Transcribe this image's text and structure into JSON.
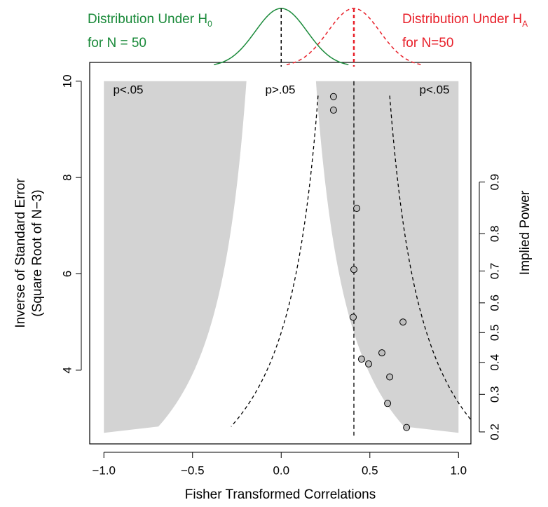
{
  "chart_data": {
    "type": "scatter",
    "x_label": "Fisher Transformed Correlations",
    "y_label": [
      "Inverse of Standard Error",
      "(Square Root of N−3)"
    ],
    "y2_label": "Implied Power",
    "region_labels": [
      "p<.05",
      "p>.05",
      "p<.05"
    ],
    "xlim": [
      -1.08,
      1.07
    ],
    "ylim": [
      2.47,
      10.39
    ],
    "xticks": [
      {
        "value": -1.0,
        "label": "−1.0"
      },
      {
        "value": -0.5,
        "label": "−0.5"
      },
      {
        "value": 0,
        "label": "0.0"
      },
      {
        "value": 0.5,
        "label": "0.5"
      },
      {
        "value": 1.0,
        "label": "1.0"
      }
    ],
    "yticks": [
      4,
      6,
      8,
      10
    ],
    "y2ticks": [
      0.2,
      0.3,
      0.4,
      0.5,
      0.6,
      0.7,
      0.8,
      0.9
    ],
    "x": [
      0.295,
      0.295,
      0.426,
      0.41,
      0.406,
      0.687,
      0.568,
      0.453,
      0.493,
      0.612,
      0.6,
      0.707
    ],
    "values": [
      9.68,
      9.4,
      7.36,
      6.09,
      5.1,
      5.0,
      4.36,
      4.23,
      4.13,
      3.86,
      3.31,
      2.81
    ],
    "point_color": "#bdbdbd",
    "shade_color": "#d3d3d3",
    "critical_z": 1.96,
    "effect_line": 0.41,
    "shade_x": [
      -1,
      1
    ],
    "shade_y": [
      2.7,
      10
    ],
    "curve_y": [
      2.83,
      9.7
    ],
    "distributions": [
      {
        "label": "Distribution Under H",
        "subscript": "0",
        "sample": "for N = 50",
        "mean": 0,
        "sd": 0.146,
        "color": "#1a8a3a"
      },
      {
        "label": "Distribution Under H",
        "subscript": "A",
        "sample": "for N=50",
        "mean": 0.41,
        "sd": 0.146,
        "color": "#e8202a"
      }
    ]
  }
}
